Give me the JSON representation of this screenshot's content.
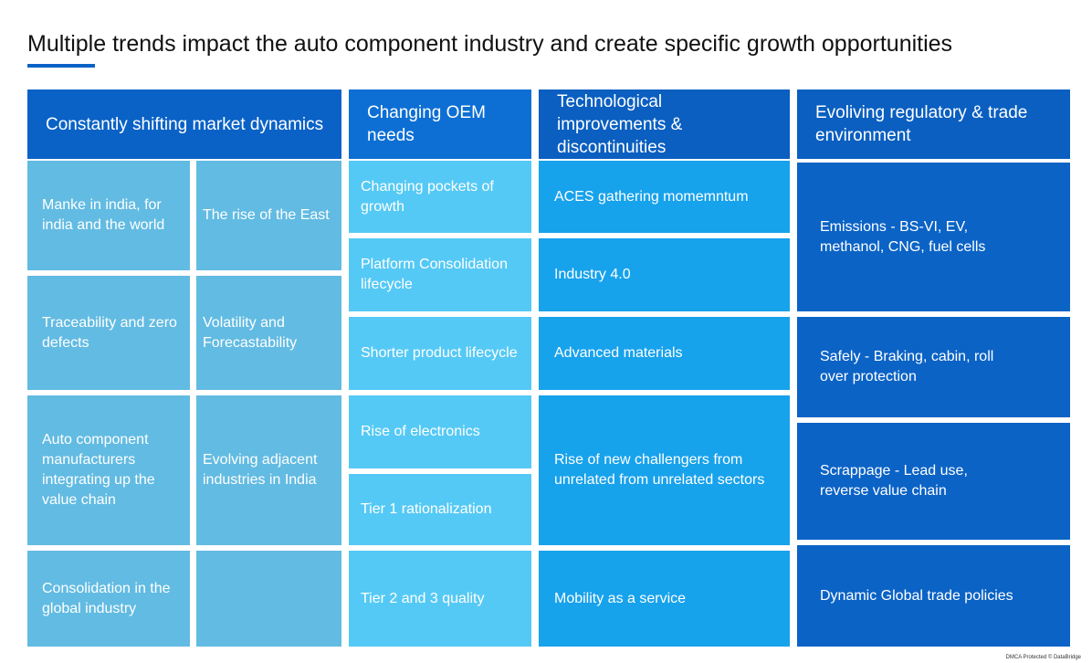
{
  "title": "Multiple trends impact the auto component industry and create specific growth opportunities",
  "columns": [
    {
      "header": "Constantly shifting market dynamics",
      "cells": [
        "Manke in india, for india and the world",
        "The rise of the East",
        "Traceability and zero defects",
        "Volatility and Forecastability",
        "Auto component manufacturers integrating up the value chain",
        "Evolving adjacent industries in India",
        "Consolidation in the global industry"
      ]
    },
    {
      "header": "Changing OEM needs",
      "cells": [
        "Changing pockets of growth",
        "Platform Consolidation lifecycle",
        "Shorter product lifecycle",
        "Rise of electronics",
        "Tier 1  rationalization",
        "Tier 2  and  3 quality"
      ]
    },
    {
      "header": "Technological improvements & discontinuities",
      "cells": [
        "ACES gathering momemntum",
        "Industry 4.0",
        "Advanced materials",
        "Rise of new challengers from unrelated from unrelated sectors",
        "Mobility as a service"
      ]
    },
    {
      "header": "Evoliving regulatory & trade environment",
      "cells": [
        "Emissions - BS-VI, EV, methanol, CNG, fuel cells",
        "Safely - Braking, cabin, roll over protection",
        "Scrappage - Lead use, reverse value chain",
        "Dynamic Global trade policies"
      ]
    }
  ],
  "watermark": "DMCA Protected © DataBridge"
}
